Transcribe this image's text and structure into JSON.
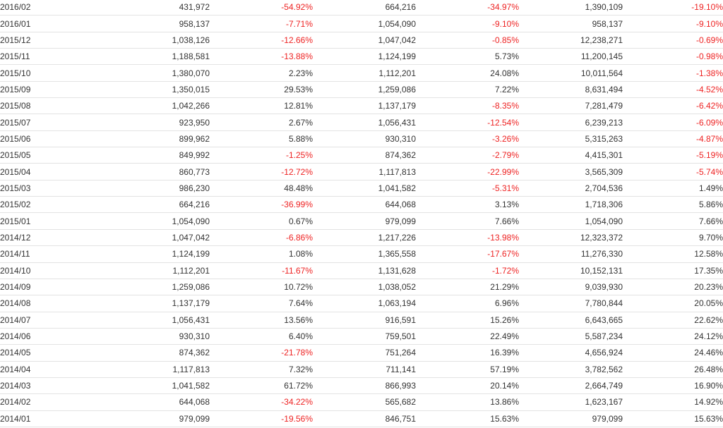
{
  "rows": [
    [
      "2016/02",
      "431,972",
      "-54.92%",
      "664,216",
      "-34.97%",
      "1,390,109",
      "-19.10%"
    ],
    [
      "2016/01",
      "958,137",
      "-7.71%",
      "1,054,090",
      "-9.10%",
      "958,137",
      "-9.10%"
    ],
    [
      "2015/12",
      "1,038,126",
      "-12.66%",
      "1,047,042",
      "-0.85%",
      "12,238,271",
      "-0.69%"
    ],
    [
      "2015/11",
      "1,188,581",
      "-13.88%",
      "1,124,199",
      "5.73%",
      "11,200,145",
      "-0.98%"
    ],
    [
      "2015/10",
      "1,380,070",
      "2.23%",
      "1,112,201",
      "24.08%",
      "10,011,564",
      "-1.38%"
    ],
    [
      "2015/09",
      "1,350,015",
      "29.53%",
      "1,259,086",
      "7.22%",
      "8,631,494",
      "-4.52%"
    ],
    [
      "2015/08",
      "1,042,266",
      "12.81%",
      "1,137,179",
      "-8.35%",
      "7,281,479",
      "-6.42%"
    ],
    [
      "2015/07",
      "923,950",
      "2.67%",
      "1,056,431",
      "-12.54%",
      "6,239,213",
      "-6.09%"
    ],
    [
      "2015/06",
      "899,962",
      "5.88%",
      "930,310",
      "-3.26%",
      "5,315,263",
      "-4.87%"
    ],
    [
      "2015/05",
      "849,992",
      "-1.25%",
      "874,362",
      "-2.79%",
      "4,415,301",
      "-5.19%"
    ],
    [
      "2015/04",
      "860,773",
      "-12.72%",
      "1,117,813",
      "-22.99%",
      "3,565,309",
      "-5.74%"
    ],
    [
      "2015/03",
      "986,230",
      "48.48%",
      "1,041,582",
      "-5.31%",
      "2,704,536",
      "1.49%"
    ],
    [
      "2015/02",
      "664,216",
      "-36.99%",
      "644,068",
      "3.13%",
      "1,718,306",
      "5.86%"
    ],
    [
      "2015/01",
      "1,054,090",
      "0.67%",
      "979,099",
      "7.66%",
      "1,054,090",
      "7.66%"
    ],
    [
      "2014/12",
      "1,047,042",
      "-6.86%",
      "1,217,226",
      "-13.98%",
      "12,323,372",
      "9.70%"
    ],
    [
      "2014/11",
      "1,124,199",
      "1.08%",
      "1,365,558",
      "-17.67%",
      "11,276,330",
      "12.58%"
    ],
    [
      "2014/10",
      "1,112,201",
      "-11.67%",
      "1,131,628",
      "-1.72%",
      "10,152,131",
      "17.35%"
    ],
    [
      "2014/09",
      "1,259,086",
      "10.72%",
      "1,038,052",
      "21.29%",
      "9,039,930",
      "20.23%"
    ],
    [
      "2014/08",
      "1,137,179",
      "7.64%",
      "1,063,194",
      "6.96%",
      "7,780,844",
      "20.05%"
    ],
    [
      "2014/07",
      "1,056,431",
      "13.56%",
      "916,591",
      "15.26%",
      "6,643,665",
      "22.62%"
    ],
    [
      "2014/06",
      "930,310",
      "6.40%",
      "759,501",
      "22.49%",
      "5,587,234",
      "24.12%"
    ],
    [
      "2014/05",
      "874,362",
      "-21.78%",
      "751,264",
      "16.39%",
      "4,656,924",
      "24.46%"
    ],
    [
      "2014/04",
      "1,117,813",
      "7.32%",
      "711,141",
      "57.19%",
      "3,782,562",
      "26.48%"
    ],
    [
      "2014/03",
      "1,041,582",
      "61.72%",
      "866,993",
      "20.14%",
      "2,664,749",
      "16.90%"
    ],
    [
      "2014/02",
      "644,068",
      "-34.22%",
      "565,682",
      "13.86%",
      "1,623,167",
      "14.92%"
    ],
    [
      "2014/01",
      "979,099",
      "-19.56%",
      "846,751",
      "15.63%",
      "979,099",
      "15.63%"
    ]
  ],
  "colors": {
    "negative": "#ee2222",
    "text": "#333333",
    "divider": "#e3e3e3"
  }
}
